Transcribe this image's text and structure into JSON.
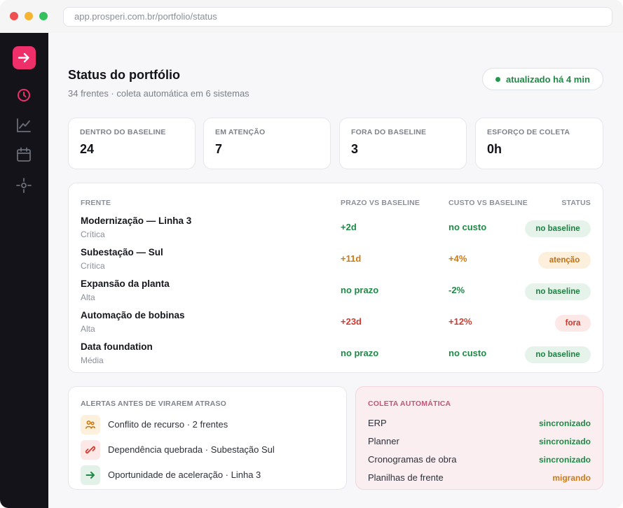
{
  "browser": {
    "url": "app.prosperi.com.br/portfolio/status"
  },
  "sidebar": {
    "items": [
      {
        "icon": "clock-icon",
        "active": true
      },
      {
        "icon": "line-chart-icon",
        "active": false
      },
      {
        "icon": "calendar-icon",
        "active": false
      },
      {
        "icon": "crosshair-icon",
        "active": false
      }
    ]
  },
  "header": {
    "title": "Status do portfólio",
    "subtitle": "34 frentes · coleta automática em 6 sistemas",
    "update_status": "atualizado há 4 min"
  },
  "metrics": [
    {
      "label": "DENTRO DO BASELINE",
      "value": "24"
    },
    {
      "label": "EM ATENÇÃO",
      "value": "7"
    },
    {
      "label": "FORA DO BASELINE",
      "value": "3"
    },
    {
      "label": "ESFORÇO DE COLETA",
      "value": "0h"
    }
  ],
  "table": {
    "headers": {
      "frente": "FRENTE",
      "prazo": "PRAZO VS BASELINE",
      "custo": "CUSTO VS BASELINE",
      "status": "STATUS"
    },
    "rows": [
      {
        "name": "Modernização — Linha 3",
        "priority": "Crítica",
        "prazo": "+2d",
        "prazo_tone": "green",
        "custo": "no custo",
        "custo_tone": "green",
        "status": "no baseline",
        "status_tone": "green"
      },
      {
        "name": "Subestação — Sul",
        "priority": "Crítica",
        "prazo": "+11d",
        "prazo_tone": "orange",
        "custo": "+4%",
        "custo_tone": "orange",
        "status": "atenção",
        "status_tone": "orange"
      },
      {
        "name": "Expansão da planta",
        "priority": "Alta",
        "prazo": "no prazo",
        "prazo_tone": "green",
        "custo": "-2%",
        "custo_tone": "green",
        "status": "no baseline",
        "status_tone": "green"
      },
      {
        "name": "Automação de bobinas",
        "priority": "Alta",
        "prazo": "+23d",
        "prazo_tone": "red",
        "custo": "+12%",
        "custo_tone": "red",
        "status": "fora",
        "status_tone": "red"
      },
      {
        "name": "Data foundation",
        "priority": "Média",
        "prazo": "no prazo",
        "prazo_tone": "green",
        "custo": "no custo",
        "custo_tone": "green",
        "status": "no baseline",
        "status_tone": "green"
      }
    ]
  },
  "alerts": {
    "title": "ALERTAS ANTES DE VIRAREM ATRASO",
    "items": [
      {
        "icon": "users-icon",
        "text": "Conflito de recurso · 2 frentes"
      },
      {
        "icon": "broken-link-icon",
        "text": "Dependência quebrada · Subestação Sul"
      },
      {
        "icon": "arrow-right-icon",
        "text": "Oportunidade de aceleração · Linha 3"
      }
    ]
  },
  "coleta": {
    "title": "COLETA AUTOMÁTICA",
    "items": [
      {
        "name": "ERP",
        "status": "sincronizado",
        "tone": "green"
      },
      {
        "name": "Planner",
        "status": "sincronizado",
        "tone": "green"
      },
      {
        "name": "Cronogramas de obra",
        "status": "sincronizado",
        "tone": "green"
      },
      {
        "name": "Planilhas de frente",
        "status": "migrando",
        "tone": "orange"
      }
    ]
  },
  "colors": {
    "accent": "#ee2f6a",
    "green": "#1e8a46",
    "orange": "#cf7a12",
    "red": "#d13b2f"
  }
}
